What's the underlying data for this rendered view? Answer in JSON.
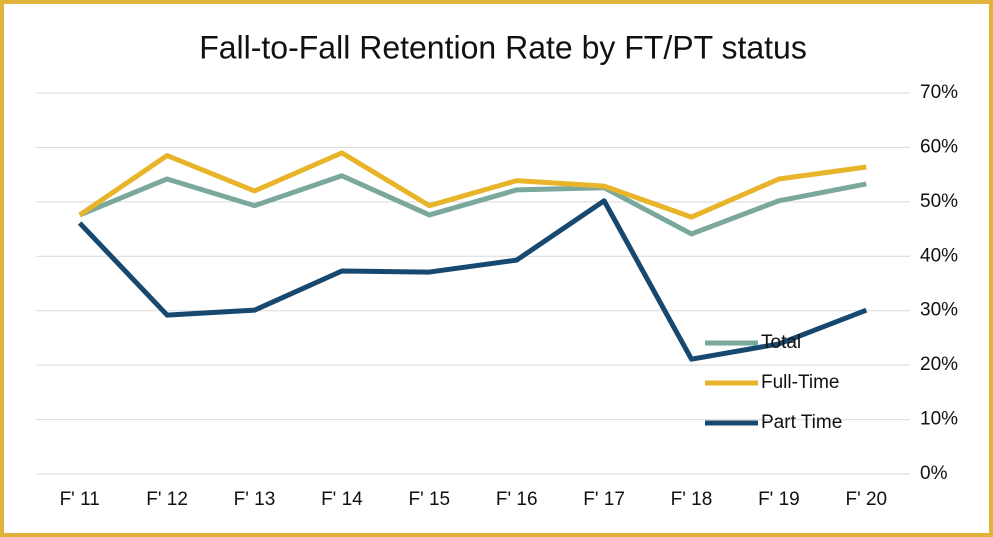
{
  "chart_data": {
    "type": "line",
    "title": "Fall-to-Fall Retention Rate by FT/PT status",
    "categories": [
      "F' 11",
      "F' 12",
      "F' 13",
      "F' 14",
      "F' 15",
      "F' 16",
      "F' 17",
      "F' 18",
      "F' 19",
      "F' 20"
    ],
    "series": [
      {
        "name": "Total",
        "color": "#7aa89c",
        "values": [
          47.6,
          54.2,
          49.3,
          54.8,
          47.6,
          52.2,
          52.6,
          44.1,
          50.2,
          53.3
        ]
      },
      {
        "name": "Full-Time",
        "color": "#e8b52a",
        "values": [
          47.6,
          58.5,
          52.0,
          59.0,
          49.3,
          53.9,
          52.9,
          47.2,
          54.2,
          56.4
        ]
      },
      {
        "name": "Part Time",
        "color": "#17486f",
        "values": [
          46.1,
          29.2,
          30.1,
          37.3,
          37.1,
          39.3,
          50.2,
          21.1,
          23.9,
          30.1
        ]
      }
    ],
    "ylim": [
      0,
      70
    ],
    "yticks": [
      {
        "value": 0,
        "label": "0%"
      },
      {
        "value": 10,
        "label": "10%"
      },
      {
        "value": 20,
        "label": "20%"
      },
      {
        "value": 30,
        "label": "30%"
      },
      {
        "value": 40,
        "label": "40%"
      },
      {
        "value": 50,
        "label": "50%"
      },
      {
        "value": 60,
        "label": "60%"
      },
      {
        "value": 70,
        "label": "70%"
      }
    ],
    "grid": true,
    "legend": "right"
  }
}
